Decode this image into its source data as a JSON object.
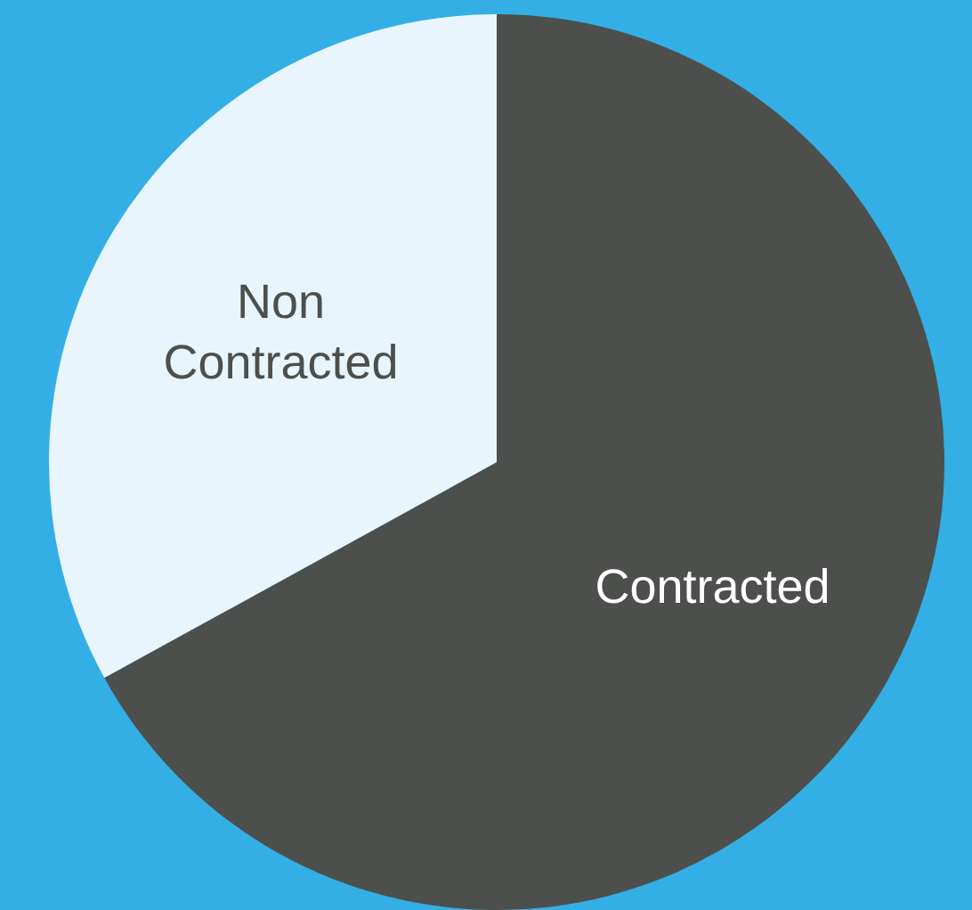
{
  "chart_data": {
    "type": "pie",
    "categories": [
      "Contracted",
      "Non Contracted"
    ],
    "values": [
      67,
      33
    ],
    "colors": [
      "#4d4f4c",
      "#e8f5fd"
    ]
  }
}
